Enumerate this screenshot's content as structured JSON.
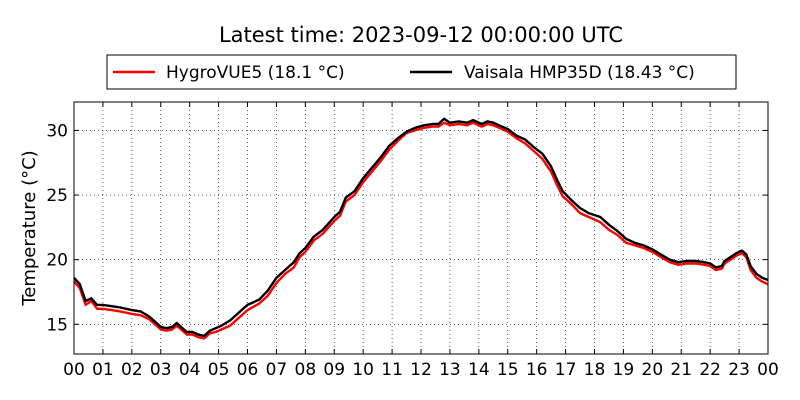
{
  "chart_data": {
    "type": "line",
    "title": "Latest time: 2023-09-12 00:00:00 UTC",
    "xlabel": "",
    "ylabel": "Temperature (°C)",
    "xlim": [
      0,
      24
    ],
    "ylim": [
      12.7,
      32.2
    ],
    "x_ticks": [
      0,
      1,
      2,
      3,
      4,
      5,
      6,
      7,
      8,
      9,
      10,
      11,
      12,
      13,
      14,
      15,
      16,
      17,
      18,
      19,
      20,
      21,
      22,
      23,
      24
    ],
    "x_tick_labels": [
      "00",
      "01",
      "02",
      "03",
      "04",
      "05",
      "06",
      "07",
      "08",
      "09",
      "10",
      "11",
      "12",
      "13",
      "14",
      "15",
      "16",
      "17",
      "18",
      "19",
      "20",
      "21",
      "22",
      "23",
      "00"
    ],
    "y_ticks": [
      15,
      20,
      25,
      30
    ],
    "y_tick_labels": [
      "15",
      "20",
      "25",
      "30"
    ],
    "grid": true,
    "legend_position": "top, above plot",
    "series": [
      {
        "name": "HygroVUE5 (18.1 °C)",
        "color": "#ff0000",
        "points": [
          [
            0,
            18.3
          ],
          [
            0.2,
            17.8
          ],
          [
            0.4,
            16.5
          ],
          [
            0.6,
            16.8
          ],
          [
            0.8,
            16.2
          ],
          [
            1.0,
            16.2
          ],
          [
            1.3,
            16.1
          ],
          [
            1.6,
            16.0
          ],
          [
            2.0,
            15.8
          ],
          [
            2.3,
            15.7
          ],
          [
            2.6,
            15.4
          ],
          [
            2.8,
            15.0
          ],
          [
            3.0,
            14.6
          ],
          [
            3.2,
            14.5
          ],
          [
            3.4,
            14.6
          ],
          [
            3.55,
            14.9
          ],
          [
            3.7,
            14.6
          ],
          [
            3.9,
            14.2
          ],
          [
            4.1,
            14.2
          ],
          [
            4.3,
            14.0
          ],
          [
            4.5,
            13.9
          ],
          [
            4.7,
            14.3
          ],
          [
            4.9,
            14.4
          ],
          [
            5.1,
            14.6
          ],
          [
            5.4,
            14.9
          ],
          [
            5.7,
            15.5
          ],
          [
            6.0,
            16.1
          ],
          [
            6.4,
            16.6
          ],
          [
            6.7,
            17.2
          ],
          [
            7.0,
            18.2
          ],
          [
            7.3,
            18.9
          ],
          [
            7.6,
            19.4
          ],
          [
            7.8,
            20.2
          ],
          [
            8.0,
            20.6
          ],
          [
            8.3,
            21.5
          ],
          [
            8.6,
            22.0
          ],
          [
            9.0,
            23.0
          ],
          [
            9.2,
            23.4
          ],
          [
            9.4,
            24.5
          ],
          [
            9.7,
            25.0
          ],
          [
            10.0,
            26.0
          ],
          [
            10.3,
            26.8
          ],
          [
            10.6,
            27.6
          ],
          [
            10.9,
            28.5
          ],
          [
            11.2,
            29.2
          ],
          [
            11.5,
            29.8
          ],
          [
            11.8,
            30.0
          ],
          [
            12.1,
            30.2
          ],
          [
            12.4,
            30.3
          ],
          [
            12.6,
            30.3
          ],
          [
            12.8,
            30.6
          ],
          [
            13.0,
            30.4
          ],
          [
            13.3,
            30.5
          ],
          [
            13.6,
            30.4
          ],
          [
            13.8,
            30.6
          ],
          [
            14.1,
            30.3
          ],
          [
            14.3,
            30.5
          ],
          [
            14.5,
            30.4
          ],
          [
            14.7,
            30.2
          ],
          [
            15.0,
            29.9
          ],
          [
            15.3,
            29.4
          ],
          [
            15.6,
            29.0
          ],
          [
            15.9,
            28.4
          ],
          [
            16.2,
            27.8
          ],
          [
            16.5,
            26.8
          ],
          [
            16.7,
            25.8
          ],
          [
            16.9,
            24.9
          ],
          [
            17.2,
            24.3
          ],
          [
            17.5,
            23.6
          ],
          [
            17.8,
            23.3
          ],
          [
            18.2,
            22.9
          ],
          [
            18.5,
            22.3
          ],
          [
            18.8,
            21.9
          ],
          [
            19.1,
            21.3
          ],
          [
            19.4,
            21.1
          ],
          [
            19.7,
            20.9
          ],
          [
            20.0,
            20.6
          ],
          [
            20.3,
            20.2
          ],
          [
            20.6,
            19.8
          ],
          [
            20.9,
            19.6
          ],
          [
            21.2,
            19.7
          ],
          [
            21.5,
            19.7
          ],
          [
            21.8,
            19.6
          ],
          [
            22.0,
            19.5
          ],
          [
            22.2,
            19.2
          ],
          [
            22.4,
            19.3
          ],
          [
            22.5,
            19.7
          ],
          [
            22.7,
            20.0
          ],
          [
            22.9,
            20.3
          ],
          [
            23.1,
            20.5
          ],
          [
            23.25,
            20.2
          ],
          [
            23.4,
            19.2
          ],
          [
            23.6,
            18.6
          ],
          [
            23.8,
            18.3
          ],
          [
            24.0,
            18.1
          ]
        ]
      },
      {
        "name": "Vaisala HMP35D (18.43 °C)",
        "color": "#000000",
        "points": [
          [
            0,
            18.6
          ],
          [
            0.2,
            18.1
          ],
          [
            0.4,
            16.8
          ],
          [
            0.6,
            17.0
          ],
          [
            0.8,
            16.5
          ],
          [
            1.0,
            16.5
          ],
          [
            1.3,
            16.4
          ],
          [
            1.6,
            16.3
          ],
          [
            2.0,
            16.1
          ],
          [
            2.3,
            16.0
          ],
          [
            2.6,
            15.6
          ],
          [
            2.8,
            15.2
          ],
          [
            3.0,
            14.8
          ],
          [
            3.2,
            14.7
          ],
          [
            3.4,
            14.8
          ],
          [
            3.55,
            15.1
          ],
          [
            3.7,
            14.8
          ],
          [
            3.9,
            14.4
          ],
          [
            4.1,
            14.4
          ],
          [
            4.3,
            14.2
          ],
          [
            4.5,
            14.1
          ],
          [
            4.7,
            14.5
          ],
          [
            4.9,
            14.7
          ],
          [
            5.1,
            14.9
          ],
          [
            5.4,
            15.3
          ],
          [
            5.7,
            15.9
          ],
          [
            6.0,
            16.5
          ],
          [
            6.4,
            16.9
          ],
          [
            6.7,
            17.6
          ],
          [
            7.0,
            18.6
          ],
          [
            7.3,
            19.2
          ],
          [
            7.6,
            19.8
          ],
          [
            7.8,
            20.5
          ],
          [
            8.0,
            20.9
          ],
          [
            8.3,
            21.8
          ],
          [
            8.6,
            22.3
          ],
          [
            9.0,
            23.3
          ],
          [
            9.2,
            23.7
          ],
          [
            9.4,
            24.8
          ],
          [
            9.7,
            25.3
          ],
          [
            10.0,
            26.3
          ],
          [
            10.3,
            27.1
          ],
          [
            10.6,
            27.9
          ],
          [
            10.9,
            28.8
          ],
          [
            11.2,
            29.4
          ],
          [
            11.5,
            29.9
          ],
          [
            11.8,
            30.2
          ],
          [
            12.1,
            30.4
          ],
          [
            12.4,
            30.5
          ],
          [
            12.6,
            30.5
          ],
          [
            12.8,
            30.9
          ],
          [
            13.0,
            30.6
          ],
          [
            13.3,
            30.7
          ],
          [
            13.6,
            30.6
          ],
          [
            13.8,
            30.8
          ],
          [
            14.1,
            30.5
          ],
          [
            14.3,
            30.7
          ],
          [
            14.5,
            30.6
          ],
          [
            14.7,
            30.4
          ],
          [
            15.0,
            30.1
          ],
          [
            15.3,
            29.6
          ],
          [
            15.6,
            29.3
          ],
          [
            15.9,
            28.7
          ],
          [
            16.2,
            28.2
          ],
          [
            16.5,
            27.2
          ],
          [
            16.7,
            26.2
          ],
          [
            16.9,
            25.3
          ],
          [
            17.2,
            24.6
          ],
          [
            17.5,
            24.0
          ],
          [
            17.8,
            23.6
          ],
          [
            18.2,
            23.3
          ],
          [
            18.5,
            22.7
          ],
          [
            18.8,
            22.2
          ],
          [
            19.1,
            21.6
          ],
          [
            19.4,
            21.3
          ],
          [
            19.7,
            21.1
          ],
          [
            20.0,
            20.8
          ],
          [
            20.3,
            20.4
          ],
          [
            20.6,
            20.0
          ],
          [
            20.9,
            19.8
          ],
          [
            21.2,
            19.9
          ],
          [
            21.5,
            19.9
          ],
          [
            21.8,
            19.8
          ],
          [
            22.0,
            19.7
          ],
          [
            22.2,
            19.4
          ],
          [
            22.4,
            19.5
          ],
          [
            22.5,
            19.9
          ],
          [
            22.7,
            20.2
          ],
          [
            22.9,
            20.5
          ],
          [
            23.1,
            20.7
          ],
          [
            23.25,
            20.4
          ],
          [
            23.4,
            19.5
          ],
          [
            23.6,
            18.9
          ],
          [
            23.8,
            18.6
          ],
          [
            24.0,
            18.43
          ]
        ]
      }
    ]
  }
}
